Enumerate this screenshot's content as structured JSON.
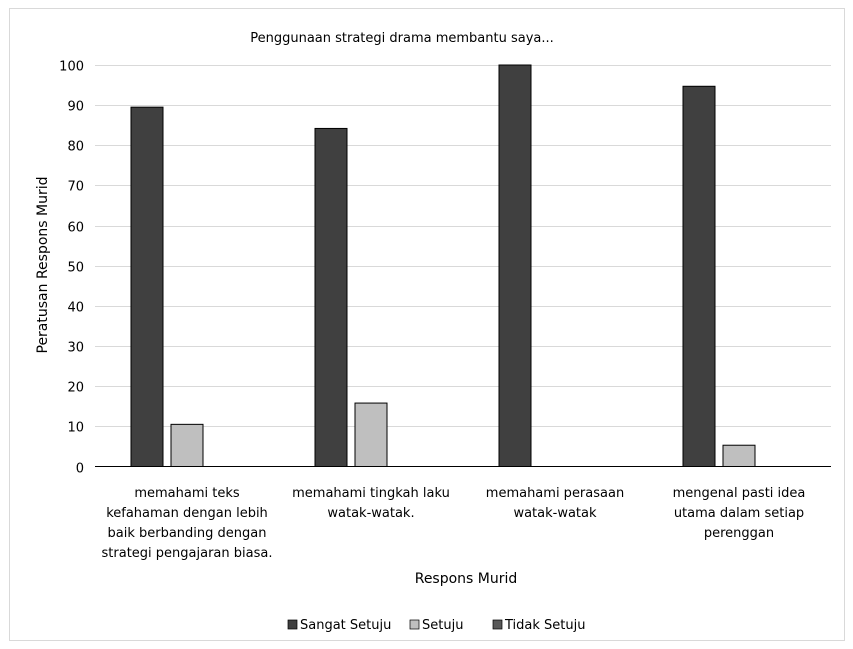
{
  "chart_data": {
    "type": "bar",
    "title": "Penggunaan strategi drama membantu saya...",
    "xlabel": "Respons Murid",
    "ylabel": "Peratusan Respons Murid",
    "ylim": [
      0,
      100
    ],
    "yticks": [
      0,
      10,
      20,
      30,
      40,
      50,
      60,
      70,
      80,
      90,
      100
    ],
    "grid": true,
    "legend_position": "bottom",
    "categories": [
      [
        "memahami teks",
        "kefahaman dengan lebih",
        "baik berbanding dengan",
        "strategi pengajaran biasa."
      ],
      [
        "memahami tingkah laku",
        "watak-watak."
      ],
      [
        "memahami perasaan",
        "watak-watak"
      ],
      [
        "mengenal pasti idea",
        "utama dalam setiap",
        "perenggan"
      ]
    ],
    "series": [
      {
        "name": "Sangat Setuju",
        "color": "#404040",
        "values": [
          89.5,
          84.2,
          100,
          94.7
        ]
      },
      {
        "name": "Setuju",
        "color": "#bfbfbf",
        "values": [
          10.5,
          15.8,
          0,
          5.3
        ]
      },
      {
        "name": "Tidak Setuju",
        "color": "#595959",
        "values": [
          0,
          0,
          0,
          0
        ]
      }
    ]
  }
}
